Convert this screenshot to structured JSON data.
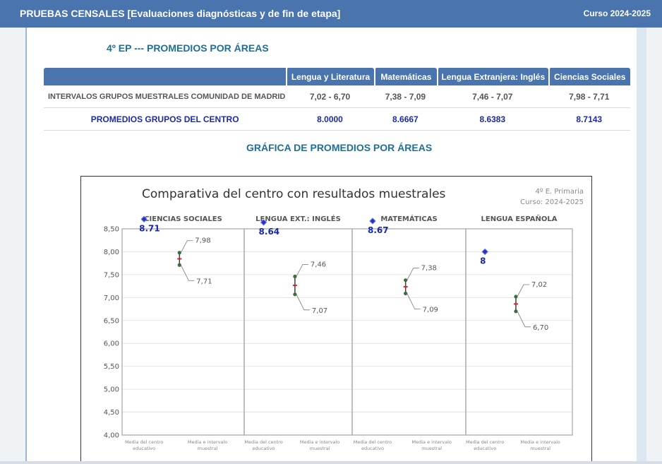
{
  "header": {
    "title": "PRUEBAS CENSALES [Evaluaciones diagnósticas y de fin de etapa]",
    "course": "Curso 2024-2025"
  },
  "section": {
    "title": "4º EP --- PROMEDIOS POR ÁREAS",
    "chart_title": "GRÁFICA DE PROMEDIOS POR ÁREAS"
  },
  "table": {
    "columns": [
      "Lengua y Literatura",
      "Matemáticas",
      "Lengua Extranjera: Inglés",
      "Ciencias Sociales"
    ],
    "rows": [
      {
        "label": "INTERVALOS GRUPOS MUESTRALES COMUNIDAD DE MADRID",
        "values": [
          "7,02 - 6,70",
          "7,38 - 7,09",
          "7,46 - 7,07",
          "7,98 - 7,71"
        ]
      },
      {
        "label": "PROMEDIOS GRUPOS DEL CENTRO",
        "values": [
          "8.0000",
          "8.6667",
          "8.6383",
          "8.7143"
        ]
      }
    ]
  },
  "chart_data": {
    "type": "scatter",
    "title": "Comparativa del centro con resultados muestrales",
    "subtitle": [
      "4º E. Primaria",
      "Curso: 2024-2025"
    ],
    "ylim": [
      4.0,
      8.5
    ],
    "yticks": [
      "4,00",
      "4,50",
      "5,00",
      "5,50",
      "6,00",
      "6,50",
      "7,00",
      "7,50",
      "8,00",
      "8,50"
    ],
    "x_category_labels": [
      [
        "Media del centro",
        "educativo"
      ],
      [
        "Media e intervalo",
        "muestral"
      ]
    ],
    "panels": [
      {
        "name": "CIENCIAS SOCIALES",
        "centro": 8.71,
        "centro_label": "8.71",
        "high": 7.98,
        "low": 7.71,
        "high_label": "7,98",
        "low_label": "7,71"
      },
      {
        "name": "LENGUA EXT.: INGLÉS",
        "centro": 8.64,
        "centro_label": "8.64",
        "high": 7.46,
        "low": 7.07,
        "high_label": "7,46",
        "low_label": "7,07"
      },
      {
        "name": "MATEMÁTICAS",
        "centro": 8.67,
        "centro_label": "8.67",
        "high": 7.38,
        "low": 7.09,
        "high_label": "7,38",
        "low_label": "7,09"
      },
      {
        "name": "LENGUA ESPAÑOLA",
        "centro": 8.0,
        "centro_label": "8",
        "high": 7.02,
        "low": 6.7,
        "high_label": "7,02",
        "low_label": "6,70"
      }
    ],
    "colors": {
      "centro": "#2233cc",
      "interval_ends": "#3d6b3d",
      "interval_mid": "#e02020",
      "grid": "#e4e4e4",
      "panel_border": "#b5b5b5"
    }
  }
}
